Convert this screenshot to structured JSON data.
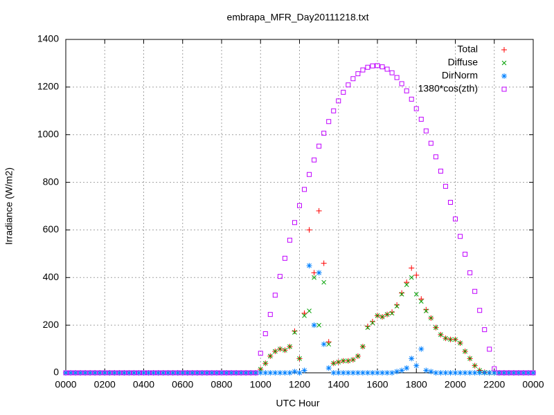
{
  "chart_data": {
    "type": "scatter",
    "title": "embrapa_MFR_Day20111218.txt",
    "x_label": "UTC Hour",
    "y_label": "Irradiance (W/m2)",
    "xlim": [
      0,
      24
    ],
    "ylim": [
      0,
      1400
    ],
    "xticks": [
      {
        "value": 0,
        "label": "0000"
      },
      {
        "value": 2,
        "label": "0200"
      },
      {
        "value": 4,
        "label": "0400"
      },
      {
        "value": 6,
        "label": "0600"
      },
      {
        "value": 8,
        "label": "0800"
      },
      {
        "value": 10,
        "label": "1000"
      },
      {
        "value": 12,
        "label": "1200"
      },
      {
        "value": 14,
        "label": "1400"
      },
      {
        "value": 16,
        "label": "1600"
      },
      {
        "value": 18,
        "label": "1800"
      },
      {
        "value": 20,
        "label": "2000"
      },
      {
        "value": 22,
        "label": "2200"
      },
      {
        "value": 24,
        "label": "0000"
      }
    ],
    "yticks": [
      0,
      200,
      400,
      600,
      800,
      1000,
      1200,
      1400
    ],
    "grid": true,
    "legend": "top right",
    "x": [
      0,
      0.25,
      0.5,
      0.75,
      1,
      1.25,
      1.5,
      1.75,
      2,
      2.25,
      2.5,
      2.75,
      3,
      3.25,
      3.5,
      3.75,
      4,
      4.25,
      4.5,
      4.75,
      5,
      5.25,
      5.5,
      5.75,
      6,
      6.25,
      6.5,
      6.75,
      7,
      7.25,
      7.5,
      7.75,
      8,
      8.25,
      8.5,
      8.75,
      9,
      9.25,
      9.5,
      9.75,
      10,
      10.25,
      10.5,
      10.75,
      11,
      11.25,
      11.5,
      11.75,
      12,
      12.25,
      12.5,
      12.75,
      13,
      13.25,
      13.5,
      13.75,
      14,
      14.25,
      14.5,
      14.75,
      15,
      15.25,
      15.5,
      15.75,
      16,
      16.25,
      16.5,
      16.75,
      17,
      17.25,
      17.5,
      17.75,
      18,
      18.25,
      18.5,
      18.75,
      19,
      19.25,
      19.5,
      19.75,
      20,
      20.25,
      20.5,
      20.75,
      21,
      21.25,
      21.5,
      21.75,
      22,
      22.25,
      22.5,
      22.75,
      23,
      23.25,
      23.5,
      23.75,
      24
    ],
    "series": [
      {
        "name": "Total",
        "color": "#ff0000",
        "marker": "plus",
        "values": [
          0,
          0,
          0,
          0,
          0,
          0,
          0,
          0,
          0,
          0,
          0,
          0,
          0,
          0,
          0,
          0,
          0,
          0,
          0,
          0,
          0,
          0,
          0,
          0,
          0,
          0,
          0,
          0,
          0,
          0,
          0,
          0,
          0,
          0,
          0,
          0,
          0,
          0,
          0,
          0,
          15,
          40,
          70,
          90,
          100,
          95,
          110,
          175,
          60,
          250,
          600,
          420,
          680,
          460,
          130,
          40,
          45,
          50,
          50,
          55,
          70,
          110,
          195,
          215,
          240,
          235,
          245,
          255,
          285,
          335,
          380,
          440,
          410,
          310,
          265,
          230,
          190,
          160,
          145,
          140,
          140,
          125,
          90,
          60,
          30,
          10,
          2,
          0,
          0,
          0,
          0,
          0,
          0,
          0,
          0,
          0,
          0
        ]
      },
      {
        "name": "Diffuse",
        "color": "#00a000",
        "marker": "cross",
        "values": [
          0,
          0,
          0,
          0,
          0,
          0,
          0,
          0,
          0,
          0,
          0,
          0,
          0,
          0,
          0,
          0,
          0,
          0,
          0,
          0,
          0,
          0,
          0,
          0,
          0,
          0,
          0,
          0,
          0,
          0,
          0,
          0,
          0,
          0,
          0,
          0,
          0,
          0,
          0,
          0,
          15,
          40,
          70,
          90,
          100,
          95,
          110,
          170,
          60,
          240,
          260,
          400,
          200,
          380,
          120,
          40,
          45,
          50,
          50,
          55,
          70,
          110,
          190,
          210,
          240,
          235,
          245,
          250,
          280,
          330,
          370,
          400,
          330,
          300,
          260,
          230,
          190,
          160,
          145,
          140,
          140,
          125,
          90,
          60,
          30,
          10,
          2,
          0,
          0,
          0,
          0,
          0,
          0,
          0,
          0,
          0,
          0
        ]
      },
      {
        "name": "DirNorm",
        "color": "#0080ff",
        "marker": "star",
        "values": [
          0,
          0,
          0,
          0,
          0,
          0,
          0,
          0,
          0,
          0,
          0,
          0,
          0,
          0,
          0,
          0,
          0,
          0,
          0,
          0,
          0,
          0,
          0,
          0,
          0,
          0,
          0,
          0,
          0,
          0,
          0,
          0,
          0,
          0,
          0,
          0,
          0,
          0,
          0,
          0,
          0,
          0,
          0,
          0,
          0,
          0,
          0,
          5,
          0,
          10,
          450,
          200,
          420,
          120,
          20,
          0,
          0,
          0,
          0,
          0,
          0,
          0,
          0,
          0,
          0,
          0,
          0,
          0,
          5,
          10,
          20,
          60,
          30,
          100,
          10,
          5,
          0,
          0,
          0,
          0,
          0,
          0,
          0,
          0,
          0,
          0,
          0,
          0,
          0,
          0,
          0,
          0,
          0,
          0,
          0,
          0,
          0
        ]
      },
      {
        "name": "1380*cos(zth)",
        "color": "#c000ff",
        "marker": "square",
        "values": [
          0,
          0,
          0,
          0,
          0,
          0,
          0,
          0,
          0,
          0,
          0,
          0,
          0,
          0,
          0,
          0,
          0,
          0,
          0,
          0,
          0,
          0,
          0,
          0,
          0,
          0,
          0,
          0,
          0,
          0,
          0,
          0,
          0,
          0,
          0,
          0,
          0,
          0,
          0,
          0,
          82,
          164,
          245,
          326,
          405,
          481,
          557,
          631,
          702,
          770,
          833,
          894,
          952,
          1006,
          1055,
          1100,
          1142,
          1178,
          1209,
          1235,
          1256,
          1272,
          1283,
          1289,
          1290,
          1285,
          1275,
          1260,
          1240,
          1214,
          1184,
          1149,
          1109,
          1065,
          1016,
          964,
          907,
          847,
          783,
          716,
          646,
          573,
          498,
          420,
          342,
          262,
          181,
          99,
          17,
          0,
          0,
          0,
          0,
          0,
          0,
          0,
          0
        ]
      }
    ]
  }
}
